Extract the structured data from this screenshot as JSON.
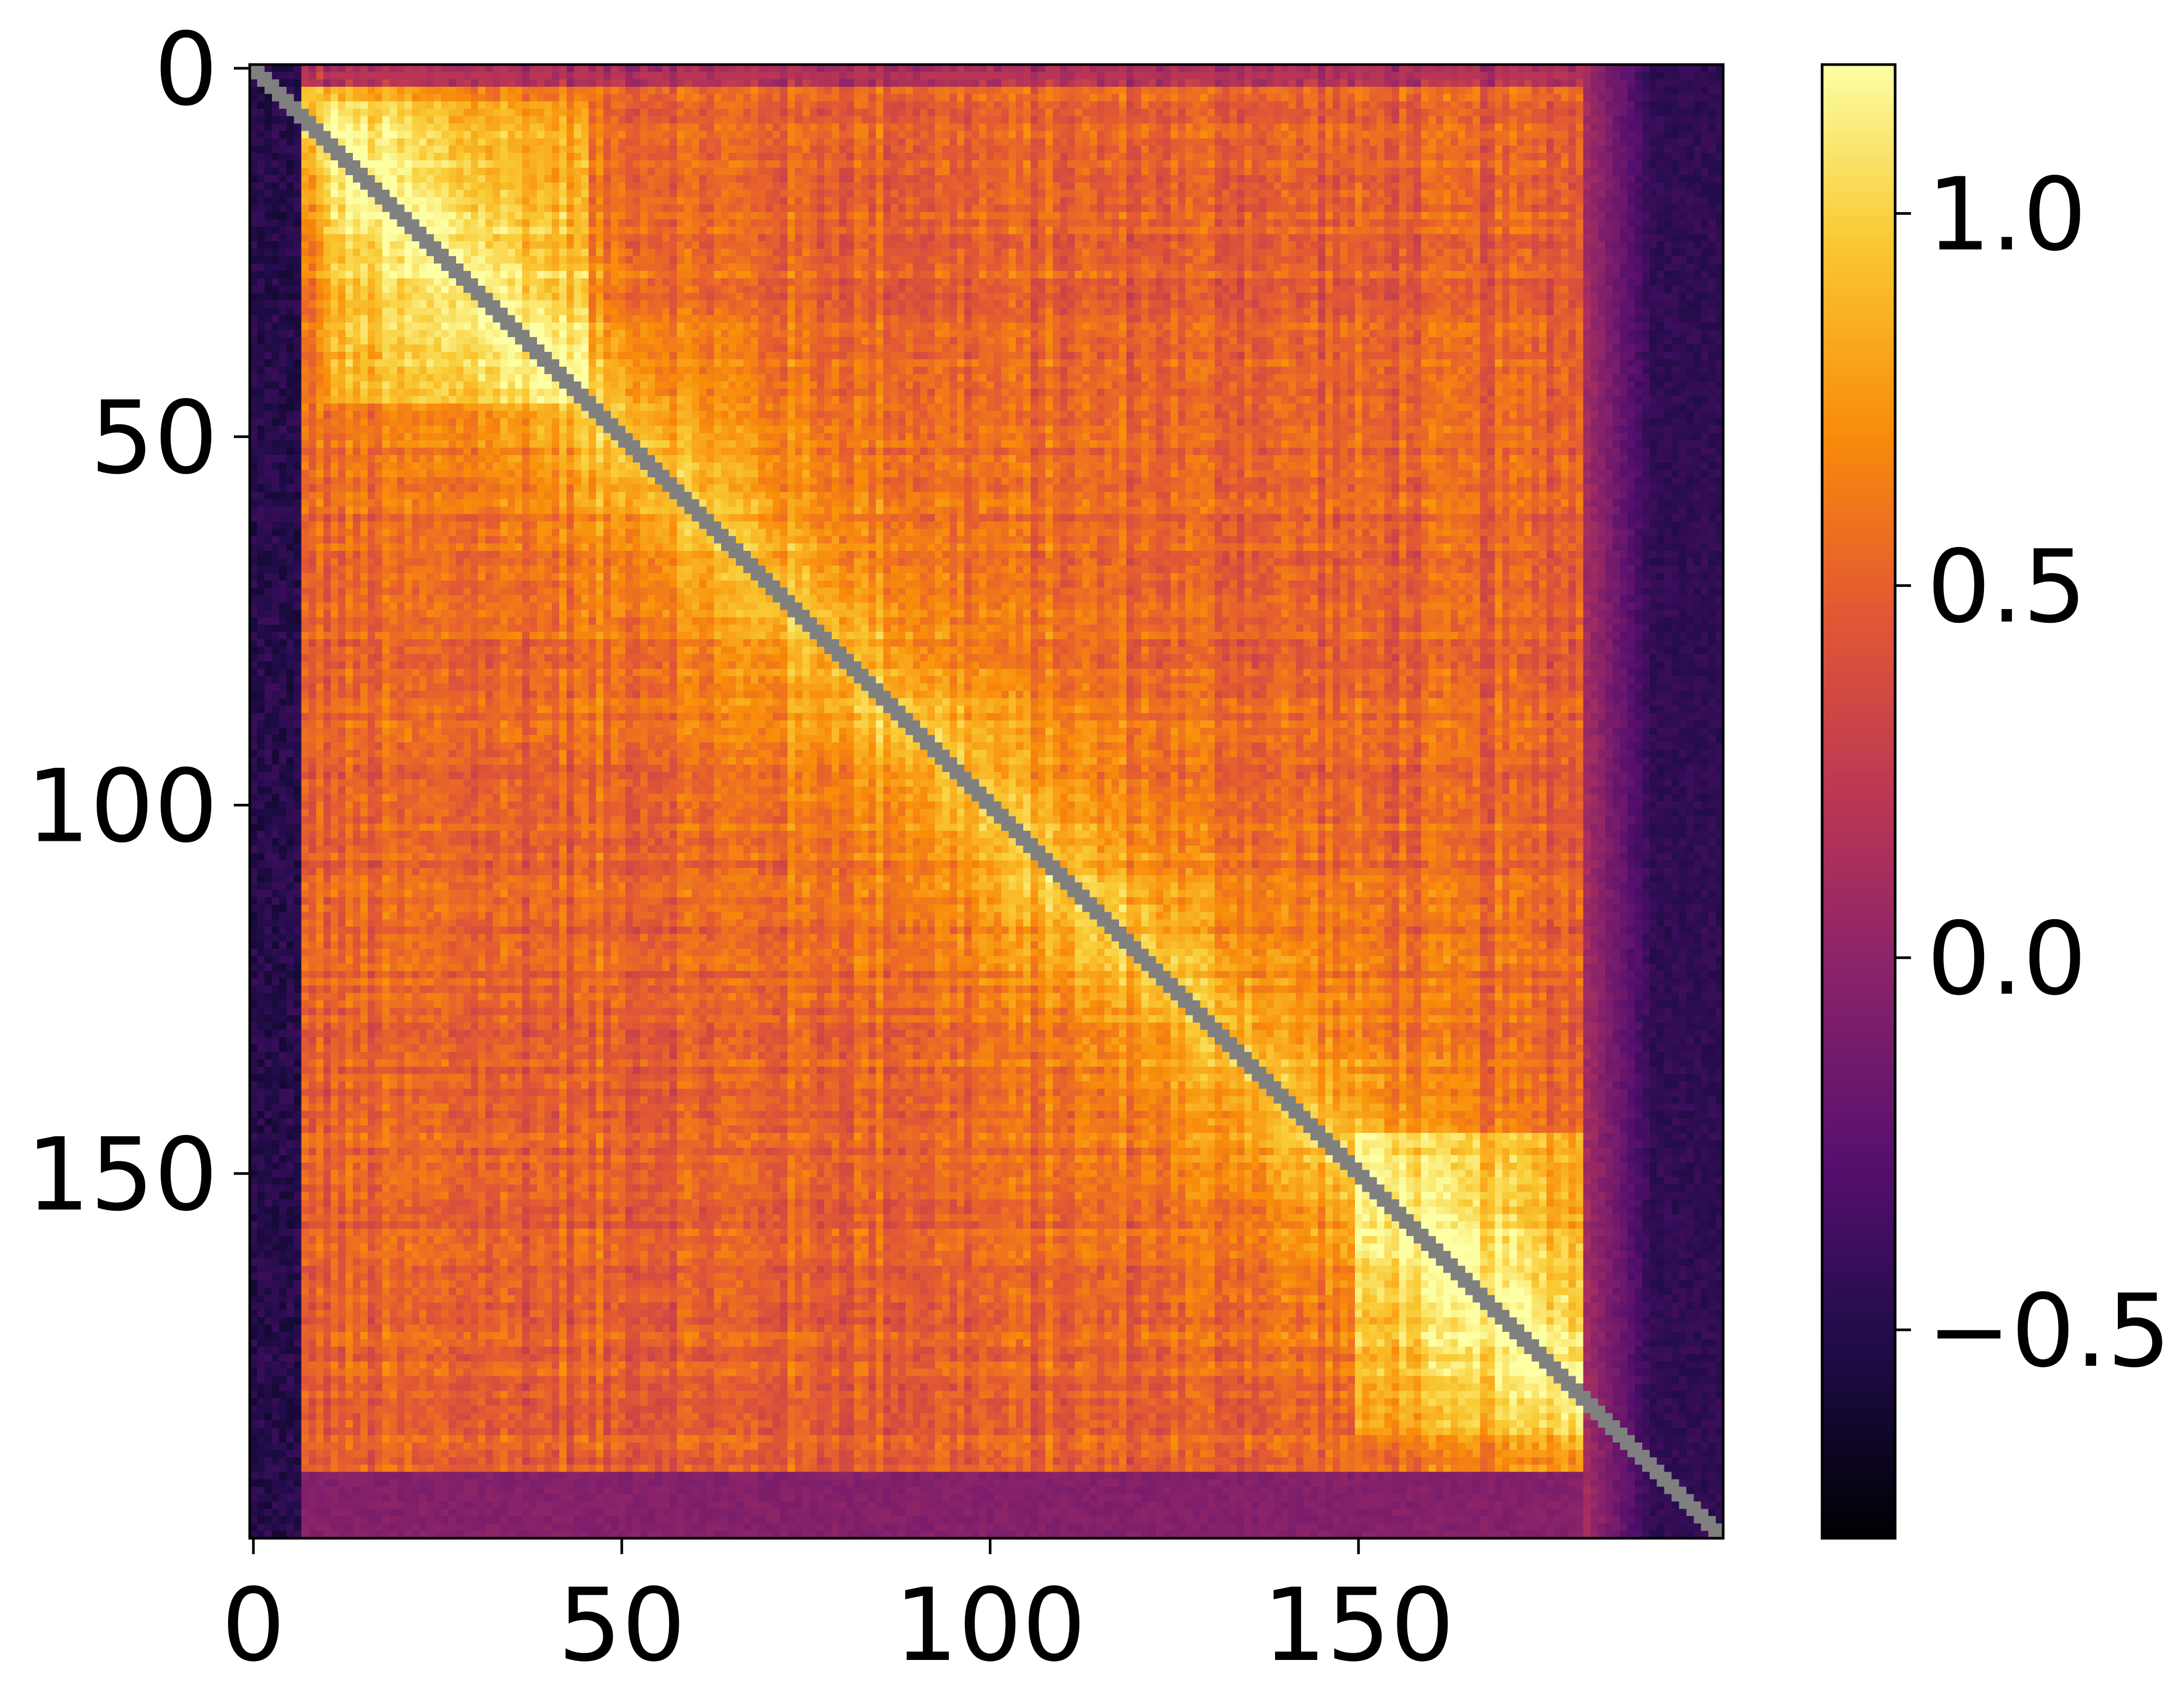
{
  "chart_data": {
    "type": "heatmap",
    "title": "",
    "xlabel": "",
    "ylabel": "",
    "colormap": "inferno",
    "matrix_size": 200,
    "x_range": [
      0,
      199
    ],
    "y_range": [
      0,
      199
    ],
    "y_axis_direction": "top-to-bottom",
    "x_ticks": [
      0,
      50,
      100,
      150
    ],
    "x_tick_labels": [
      "0",
      "50",
      "100",
      "150"
    ],
    "y_ticks": [
      0,
      50,
      100,
      150
    ],
    "y_tick_labels": [
      "0",
      "50",
      "100",
      "150"
    ],
    "diagonal": {
      "masked": true,
      "color": "#808080"
    },
    "value_range": [
      -0.78,
      1.2
    ],
    "structure": {
      "edge_band_low_value": -0.55,
      "first_columns_value": -0.5,
      "last_columns_value": -0.45,
      "last_rows_value": -0.05,
      "interior_mean_value": 0.5,
      "near_diagonal_peak_value": 1.0,
      "bright_corner_regions": [
        {
          "rows": [
            5,
            45
          ],
          "cols": [
            10,
            45
          ],
          "value": 1.05
        },
        {
          "rows": [
            145,
            185
          ],
          "cols": [
            150,
            180
          ],
          "value": 1.05
        }
      ]
    },
    "colorbar": {
      "orientation": "vertical",
      "ticks": [
        -0.5,
        0.0,
        0.5,
        1.0
      ],
      "tick_labels": [
        "−0.5",
        "0.0",
        "0.5",
        "1.0"
      ]
    }
  }
}
